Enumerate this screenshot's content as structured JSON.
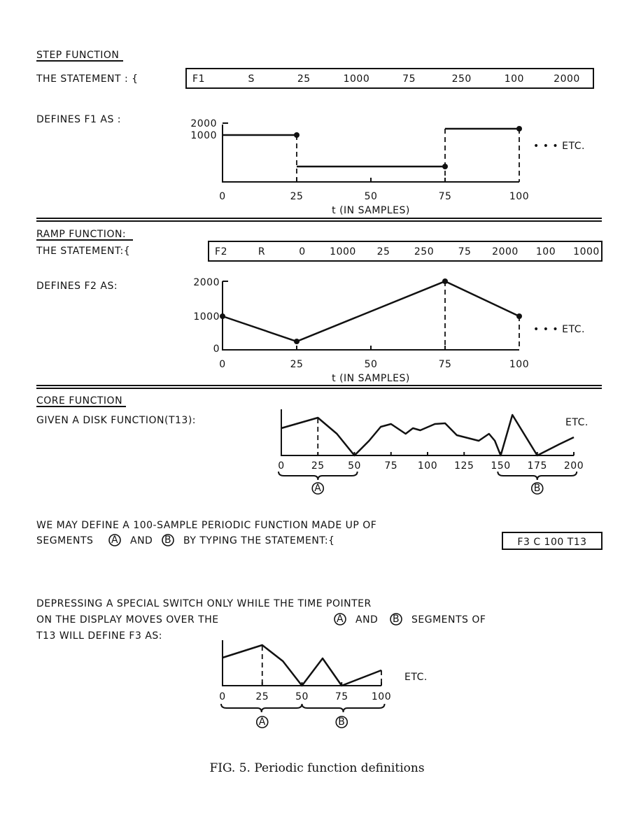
{
  "step": {
    "heading": "STEP FUNCTION",
    "statement_label": "THE STATEMENT : {",
    "statement_tokens": [
      "F1",
      "S",
      "25",
      "1000",
      "75",
      "250",
      "100",
      "2000"
    ],
    "defines_label": "DEFINES F1 AS :",
    "etc": "• • • ETC.",
    "xlabel": "t (IN SAMPLES)",
    "x_ticks": [
      "0",
      "25",
      "50",
      "75",
      "100"
    ],
    "y_ticks": [
      "1000",
      "2000"
    ]
  },
  "ramp": {
    "heading": "RAMP FUNCTION:",
    "statement_label": "THE STATEMENT:{",
    "statement_tokens": [
      "F2",
      "R",
      "0",
      "1000",
      "25",
      "250",
      "75",
      "2000",
      "100",
      "1000"
    ],
    "defines_label": "DEFINES F2 AS:",
    "etc": "• • • ETC.",
    "xlabel": "t (IN SAMPLES)",
    "x_ticks": [
      "0",
      "25",
      "50",
      "75",
      "100"
    ],
    "y_ticks": [
      "0",
      "1000",
      "2000"
    ]
  },
  "core": {
    "heading": "CORE FUNCTION",
    "given_label": "GIVEN A DISK FUNCTION(T13):",
    "etc": "ETC.",
    "x_ticks": [
      "0",
      "25",
      "50",
      "75",
      "100",
      "125",
      "150",
      "175",
      "200"
    ],
    "segment_a": "A",
    "segment_b": "B",
    "para1_line1": "WE MAY DEFINE A 100-SAMPLE PERIODIC FUNCTION MADE UP OF",
    "para1_line2_a": "SEGMENTS",
    "para1_line2_b": "AND",
    "para1_line2_c": "BY TYPING THE STATEMENT:{",
    "statement": "F3 C 100 T13",
    "para2_line1": "DEPRESSING A SPECIAL SWITCH ONLY WHILE THE TIME POINTER",
    "para2_line2_a": "ON THE DISPLAY MOVES OVER THE",
    "para2_line2_b": "AND",
    "para2_line2_c": "SEGMENTS OF",
    "para2_line3": "T13 WILL DEFINE F3 AS:",
    "result_x_ticks": [
      "0",
      "25",
      "50",
      "75",
      "100"
    ],
    "result_etc": "ETC."
  },
  "caption": "FIG. 5.  Periodic function definitions",
  "chart_data": [
    {
      "type": "line",
      "name_in_figure": "F1",
      "step": true,
      "x": [
        0,
        25,
        75,
        100
      ],
      "y": [
        1000,
        250,
        2000,
        2000
      ],
      "xlim": [
        0,
        100
      ],
      "ylim": [
        0,
        2000
      ]
    },
    {
      "type": "line",
      "name_in_figure": "F2",
      "x": [
        0,
        25,
        75,
        100
      ],
      "y": [
        1000,
        250,
        2000,
        1000
      ],
      "xlim": [
        0,
        100
      ],
      "ylim": [
        0,
        2000
      ]
    }
  ]
}
